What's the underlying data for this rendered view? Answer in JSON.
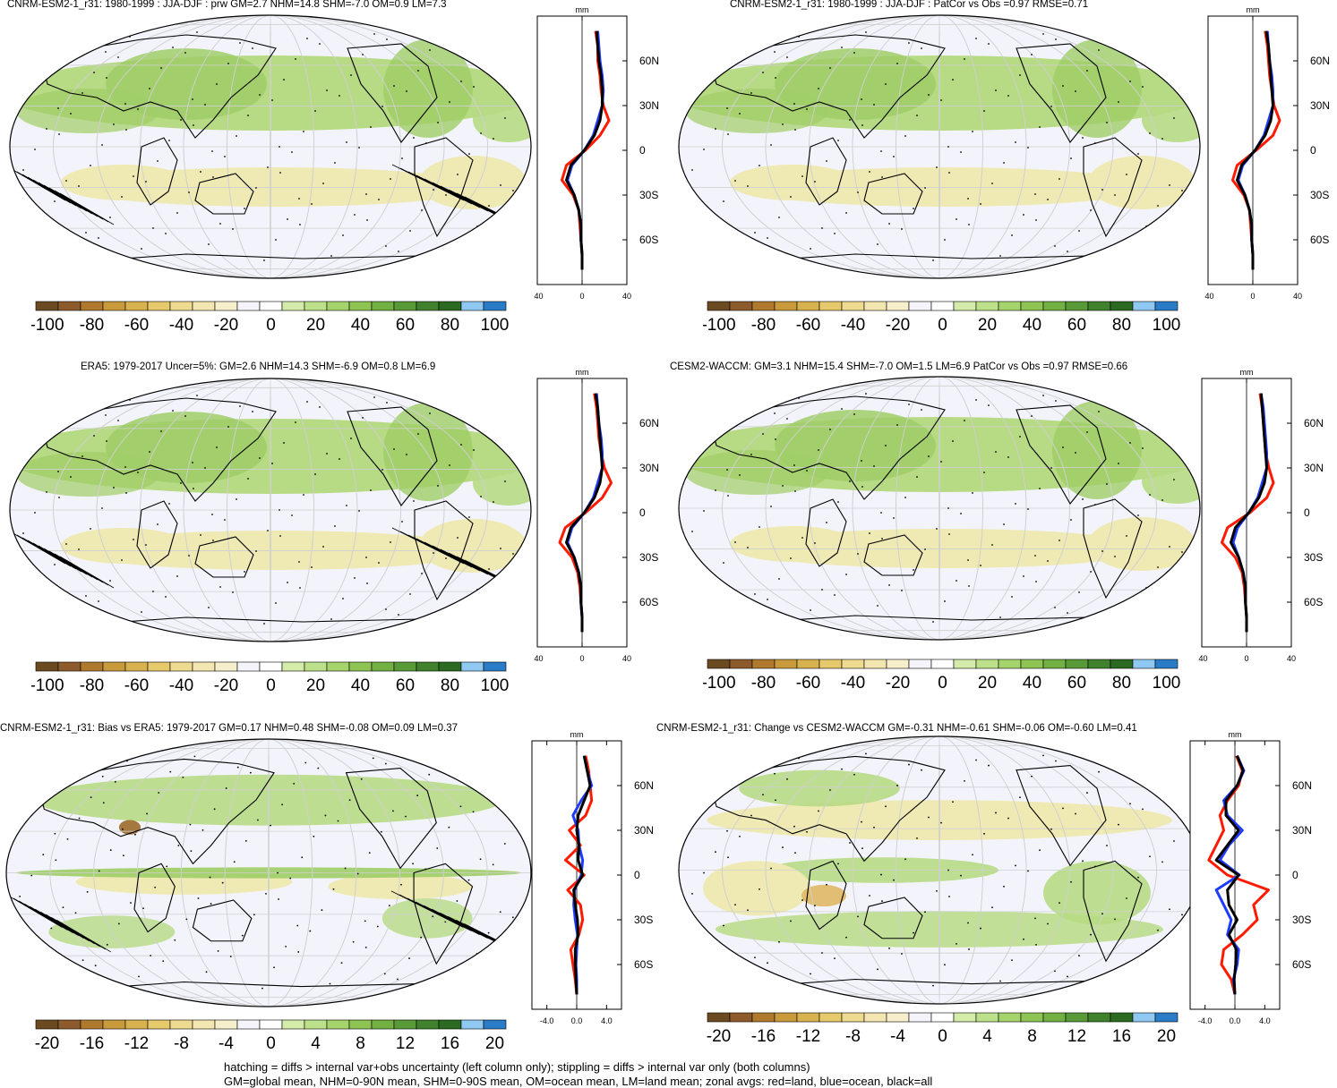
{
  "colors": {
    "abs": [
      "#6b4a22",
      "#8c5a2b",
      "#b07a2e",
      "#c99a3b",
      "#d8b24f",
      "#e6c96b",
      "#eedb8f",
      "#f3e6b0",
      "#f7efcc",
      "#f4f4fa",
      "#ffffff",
      "#d5ebaa",
      "#bde08a",
      "#a6d46c",
      "#8dc454",
      "#72b043",
      "#589a38",
      "#3f812c",
      "#2c6a22",
      "#8fc8f0",
      "#2a7cc7"
    ],
    "map_wet": "#b7da84",
    "map_wet2": "#9fcd66",
    "map_dry": "#efe9b3",
    "map_bg": "#f3f4fb",
    "land_line": "#000000",
    "prof_red": "#ff1a00",
    "prof_blue": "#1e3cff",
    "prof_black": "#000000"
  },
  "colorbar_abs_labels": [
    "-100",
    "-80",
    "-60",
    "-40",
    "-20",
    "0",
    "20",
    "40",
    "60",
    "80",
    "100"
  ],
  "colorbar_diff_labels": [
    "-20",
    "-16",
    "-12",
    "-8",
    "-4",
    "0",
    "4",
    "8",
    "12",
    "16",
    "20"
  ],
  "lat_labels": [
    "60N",
    "30N",
    "0",
    "30S",
    "60S"
  ],
  "profile_unit": "mm",
  "panels": [
    {
      "id": "p1",
      "title": "CNRM-ESM2-1_r31: 1980-1999 : JJA-DJF : prw GM=2.7 NHM=14.8 SHM=-7.0 OM=0.9 LM=7.3",
      "xticks": [
        "-40",
        "0",
        "40"
      ],
      "cbar": "abs"
    },
    {
      "id": "p2",
      "title": "CNRM-ESM2-1_r31: 1980-1999 : JJA-DJF : PatCor vs Obs =0.97 RMSE=0.71",
      "xticks": [
        "-40",
        "0",
        "40"
      ],
      "cbar": "abs"
    },
    {
      "id": "p3",
      "title": "ERA5: 1979-2017 Uncer=5%: GM=2.6 NHM=14.3 SHM=-6.9 OM=0.8 LM=6.9",
      "xticks": [
        "-40",
        "0",
        "40"
      ],
      "cbar": "abs"
    },
    {
      "id": "p4",
      "title": "CESM2-WACCM: GM=3.1 NHM=15.4 SHM=-7.0 OM=1.5 LM=6.9 PatCor vs Obs =0.97 RMSE=0.66",
      "xticks": [
        "-40",
        "0",
        "40"
      ],
      "cbar": "abs"
    },
    {
      "id": "p5",
      "title": "CNRM-ESM2-1_r31: Bias vs ERA5: 1979-2017 GM=0.17 NHM=0.48 SHM=-0.08 OM=0.09 LM=0.37",
      "xticks": [
        "-4.0",
        "0.0",
        "4.0"
      ],
      "cbar": "diff"
    },
    {
      "id": "p6",
      "title": "CNRM-ESM2-1_r31: Change vs CESM2-WACCM GM=-0.31 NHM=-0.61 SHM=-0.06 OM=-0.60 LM=0.41",
      "xticks": [
        "-4.0",
        "0.0",
        "4.0"
      ],
      "cbar": "diff"
    }
  ],
  "chart_data": [
    {
      "type": "line",
      "title": "CNRM-ESM2-1_r31: 1980-1999 : JJA-DJF : prw GM=2.7 NHM=14.8 SHM=-7.0 OM=0.9 LM=7.3",
      "xlabel": "mm",
      "xlim": [
        -40,
        40
      ],
      "y": [
        80,
        70,
        60,
        50,
        40,
        30,
        20,
        10,
        0,
        -10,
        -20,
        -30,
        -40,
        -50,
        -60,
        -70,
        -80
      ],
      "series": [
        {
          "name": "land",
          "values": [
            12,
            14,
            14,
            16,
            17,
            19,
            24,
            16,
            3,
            -14,
            -18,
            -8,
            -3,
            -2,
            -1,
            0,
            0
          ]
        },
        {
          "name": "ocean",
          "values": [
            14,
            15,
            16,
            18,
            19,
            18,
            14,
            10,
            2,
            -9,
            -13,
            -7,
            -3,
            -1,
            -1,
            0,
            0
          ]
        },
        {
          "name": "all",
          "values": [
            13,
            14,
            15,
            17,
            18,
            18,
            16,
            11,
            2,
            -10,
            -14,
            -7,
            -3,
            -1,
            -1,
            0,
            0
          ]
        }
      ]
    },
    {
      "type": "line",
      "title": "CNRM-ESM2-1_r31: 1980-1999 : JJA-DJF : PatCor vs Obs =0.97 RMSE=0.71",
      "xlabel": "mm",
      "xlim": [
        -40,
        40
      ],
      "y": [
        80,
        70,
        60,
        50,
        40,
        30,
        20,
        10,
        0,
        -10,
        -20,
        -30,
        -40,
        -50,
        -60,
        -70,
        -80
      ],
      "series": [
        {
          "name": "land",
          "values": [
            11,
            13,
            14,
            15,
            17,
            19,
            24,
            18,
            3,
            -14,
            -18,
            -8,
            -3,
            -2,
            -1,
            0,
            0
          ]
        },
        {
          "name": "ocean",
          "values": [
            13,
            14,
            15,
            17,
            18,
            18,
            14,
            10,
            2,
            -9,
            -13,
            -7,
            -3,
            -1,
            -1,
            0,
            0
          ]
        },
        {
          "name": "all",
          "values": [
            12,
            14,
            15,
            16,
            17,
            18,
            16,
            11,
            2,
            -10,
            -14,
            -7,
            -3,
            -1,
            -1,
            0,
            0
          ]
        }
      ]
    },
    {
      "type": "line",
      "title": "ERA5: 1979-2017 Uncer=5%: GM=2.6 NHM=14.3 SHM=-6.9 OM=0.8 LM=6.9",
      "xlabel": "mm",
      "xlim": [
        -40,
        40
      ],
      "y": [
        80,
        70,
        60,
        50,
        40,
        30,
        20,
        10,
        0,
        -10,
        -20,
        -30,
        -40,
        -50,
        -60,
        -70,
        -80
      ],
      "series": [
        {
          "name": "land",
          "values": [
            11,
            13,
            14,
            15,
            17,
            20,
            26,
            18,
            3,
            -15,
            -20,
            -9,
            -4,
            -2,
            -1,
            0,
            0
          ]
        },
        {
          "name": "ocean",
          "values": [
            13,
            14,
            15,
            17,
            18,
            18,
            14,
            10,
            2,
            -9,
            -13,
            -7,
            -3,
            -1,
            -1,
            0,
            0
          ]
        },
        {
          "name": "all",
          "values": [
            12,
            14,
            15,
            16,
            17,
            18,
            16,
            11,
            2,
            -10,
            -14,
            -7,
            -3,
            -1,
            -1,
            0,
            0
          ]
        }
      ]
    },
    {
      "type": "line",
      "title": "CESM2-WACCM: GM=3.1 NHM=15.4 SHM=-7.0 OM=1.5 LM=6.9 PatCor vs Obs =0.97 RMSE=0.66",
      "xlabel": "mm",
      "xlim": [
        -40,
        40
      ],
      "y": [
        80,
        70,
        60,
        50,
        40,
        30,
        20,
        10,
        0,
        -10,
        -20,
        -30,
        -40,
        -50,
        -60,
        -70,
        -80
      ],
      "series": [
        {
          "name": "land",
          "values": [
            12,
            14,
            15,
            16,
            17,
            20,
            24,
            18,
            3,
            -17,
            -22,
            -10,
            -4,
            -2,
            -1,
            0,
            0
          ]
        },
        {
          "name": "ocean",
          "values": [
            13,
            15,
            16,
            17,
            18,
            18,
            14,
            10,
            2,
            -8,
            -12,
            -7,
            -3,
            -1,
            -1,
            0,
            0
          ]
        },
        {
          "name": "all",
          "values": [
            13,
            14,
            15,
            16,
            17,
            18,
            16,
            11,
            2,
            -10,
            -14,
            -7,
            -3,
            -1,
            -1,
            0,
            0
          ]
        }
      ]
    },
    {
      "type": "line",
      "title": "CNRM-ESM2-1_r31: Bias vs ERA5: 1979-2017 GM=0.17 NHM=0.48 SHM=-0.08 OM=0.09 LM=0.37",
      "xlabel": "mm",
      "xlim": [
        -6,
        6
      ],
      "y": [
        80,
        70,
        60,
        50,
        40,
        30,
        20,
        10,
        0,
        -10,
        -20,
        -30,
        -40,
        -50,
        -60,
        -70,
        -80
      ],
      "series": [
        {
          "name": "land",
          "values": [
            1.2,
            1.6,
            1.8,
            2.0,
            1.2,
            -1.0,
            0.5,
            -1.5,
            1.0,
            -1.2,
            0.5,
            0.8,
            0.3,
            -0.8,
            -0.5,
            -0.2,
            0.0
          ]
        },
        {
          "name": "ocean",
          "values": [
            1.0,
            1.4,
            2.0,
            0.6,
            -0.5,
            0.2,
            0.3,
            0.8,
            0.6,
            -0.3,
            -0.4,
            -0.2,
            0.1,
            0.0,
            -0.1,
            0.0,
            0.0
          ]
        },
        {
          "name": "all",
          "values": [
            1.0,
            1.4,
            1.8,
            1.0,
            0.2,
            0.0,
            0.3,
            0.2,
            0.8,
            -0.4,
            -0.2,
            0.1,
            0.2,
            -0.2,
            -0.2,
            -0.1,
            0.0
          ]
        }
      ]
    },
    {
      "type": "line",
      "title": "CNRM-ESM2-1_r31: Change vs CESM2-WACCM GM=-0.31 NHM=-0.61 SHM=-0.06 OM=-0.60 LM=0.41",
      "xlabel": "mm",
      "xlim": [
        -6,
        6
      ],
      "y": [
        80,
        70,
        60,
        50,
        40,
        30,
        20,
        10,
        0,
        -10,
        -20,
        -30,
        -40,
        -50,
        -60,
        -70,
        -80
      ],
      "series": [
        {
          "name": "land",
          "values": [
            0.2,
            1.0,
            0.5,
            -1.0,
            -2.0,
            -1.5,
            -2.5,
            -3.5,
            -1.0,
            4.5,
            2.5,
            3.0,
            1.0,
            -1.5,
            -1.8,
            -0.5,
            0.0
          ]
        },
        {
          "name": "ocean",
          "values": [
            0.3,
            1.2,
            0.3,
            -1.5,
            -1.0,
            1.0,
            -0.8,
            -2.0,
            0.6,
            -2.5,
            -1.5,
            -0.5,
            -1.0,
            0.5,
            0.3,
            -0.2,
            0.0
          ]
        },
        {
          "name": "all",
          "values": [
            0.3,
            1.1,
            0.3,
            -1.2,
            -1.2,
            0.5,
            -1.0,
            -2.5,
            0.5,
            -1.0,
            -0.8,
            0.3,
            -0.8,
            0.2,
            0.1,
            -0.1,
            0.0
          ]
        }
      ]
    }
  ],
  "footer": {
    "line1": "hatching = diffs > internal var+obs uncertainty (left column only); stippling = diffs > internal var only (both columns)",
    "line2": "GM=global mean, NHM=0-90N mean, SHM=0-90S mean, OM=ocean mean, LM=land mean; zonal avgs: red=land, blue=ocean, black=all"
  }
}
